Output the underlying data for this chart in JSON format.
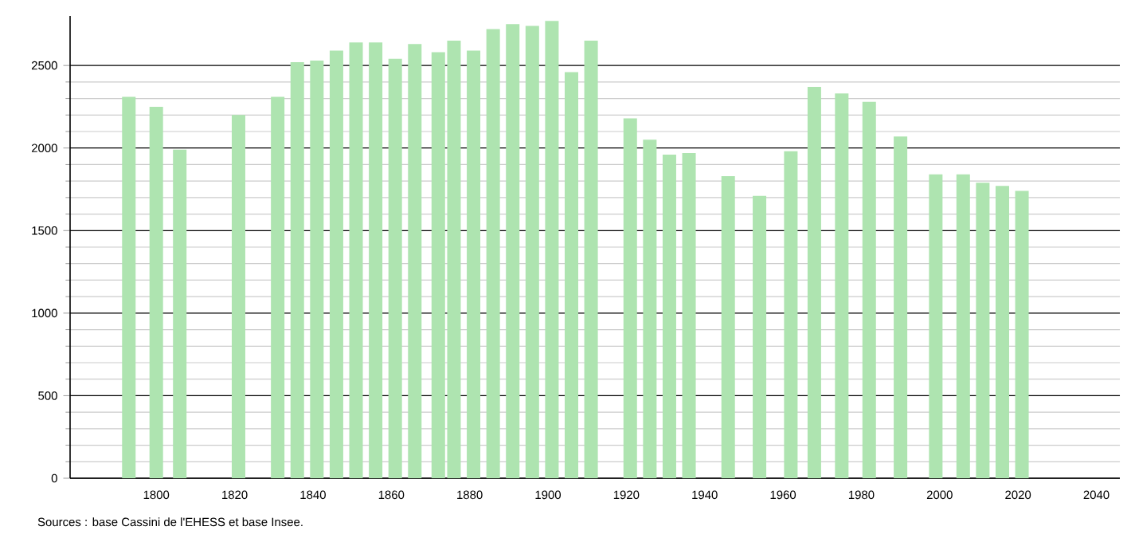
{
  "chart_data": {
    "type": "bar",
    "color": "#aee4b0",
    "grid": "y",
    "x": [
      1793,
      1800,
      1806,
      1821,
      1831,
      1836,
      1841,
      1846,
      1851,
      1856,
      1861,
      1866,
      1872,
      1876,
      1881,
      1886,
      1891,
      1896,
      1901,
      1906,
      1911,
      1921,
      1926,
      1931,
      1936,
      1946,
      1954,
      1962,
      1968,
      1975,
      1982,
      1990,
      1999,
      2006,
      2011,
      2016,
      2021
    ],
    "values": [
      2310,
      2250,
      1990,
      2200,
      2310,
      2520,
      2530,
      2590,
      2640,
      2640,
      2540,
      2630,
      2580,
      2650,
      2590,
      2720,
      2750,
      2740,
      2770,
      2460,
      2650,
      2180,
      2050,
      1960,
      1970,
      1830,
      1710,
      1980,
      2370,
      2330,
      2280,
      2070,
      1840,
      1840,
      1790,
      1770,
      1740
    ],
    "xlim": [
      1778,
      2046
    ],
    "ylim": [
      0,
      2800
    ],
    "xticks": [
      1800,
      1820,
      1840,
      1860,
      1880,
      1900,
      1920,
      1940,
      1960,
      1980,
      2000,
      2020,
      2040
    ],
    "yticks": [
      0,
      500,
      1000,
      1500,
      2000,
      2500
    ],
    "annotations": [
      "Sources : base Cassini de l'EHESS et base Insee."
    ]
  }
}
